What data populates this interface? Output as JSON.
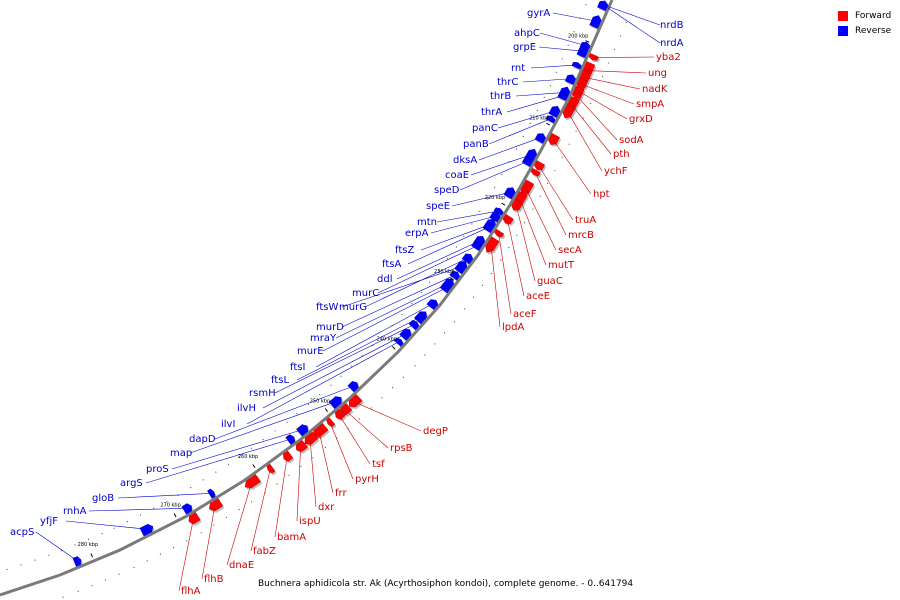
{
  "legend": [
    {
      "label": "Forward",
      "color": "#ff0000"
    },
    {
      "label": "Reverse",
      "color": "#0000ff"
    }
  ],
  "caption": "Buchnera aphidicola str. Ak (Acyrthosiphon kondoi), complete genome. - 0..641794",
  "ticks": [
    "200 kbp",
    "210 kbp",
    "220 kbp",
    "230 kbp",
    "240 kbp",
    "250 kbp",
    "260 kbp",
    "270 kbp",
    "280 kbp"
  ],
  "reverse_genes": [
    "nrdB",
    "nrdA",
    "gyrA",
    "ahpC",
    "grpE",
    "rnt",
    "thrC",
    "thrB",
    "thrA",
    "panC",
    "panB",
    "dksA",
    "coaE",
    "speD",
    "speE",
    "mtn",
    "erpA",
    "ftsZ",
    "ftsA",
    "ddl",
    "murC",
    "murG",
    "ftsW",
    "murD",
    "mraY",
    "murE",
    "ftsI",
    "ftsL",
    "rsmH",
    "ilvH",
    "ilvI",
    "dapD",
    "map",
    "argS",
    "proS",
    "gloB",
    "rnhA",
    "yfjF",
    "acpS"
  ],
  "forward_genes": [
    "yba2",
    "ung",
    "nadK",
    "smpA",
    "grxD",
    "sodA",
    "pth",
    "ychF",
    "hpt",
    "truA",
    "mrcB",
    "secA",
    "mutT",
    "guaC",
    "aceE",
    "aceF",
    "lpdA",
    "degP",
    "rpsB",
    "tsf",
    "pyrH",
    "frr",
    "dxr",
    "ispU",
    "bamA",
    "fabZ",
    "dnaE",
    "flhB",
    "flhA"
  ]
}
